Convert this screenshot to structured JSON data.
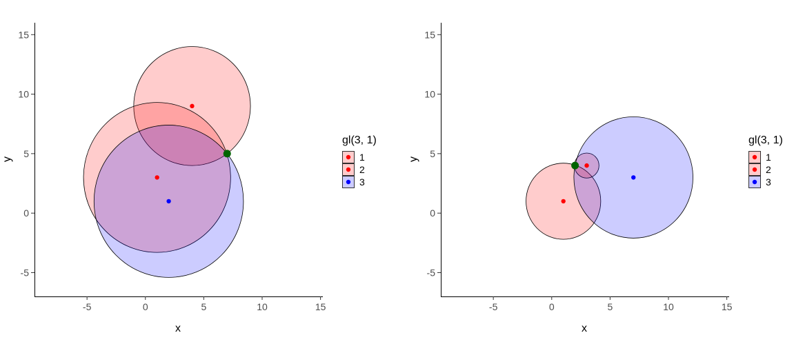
{
  "chart_data": [
    {
      "type": "scatter",
      "title": "",
      "xlabel": "x",
      "ylabel": "y",
      "xlim": [
        -9.5,
        15.2
      ],
      "ylim": [
        -7,
        16
      ],
      "xticks": [
        -5,
        0,
        5,
        10,
        15
      ],
      "yticks": [
        -5,
        0,
        5,
        10,
        15
      ],
      "xtick_labels": [
        "-5",
        "0",
        "5",
        "10",
        "15"
      ],
      "ytick_labels": [
        "-5",
        "0",
        "5",
        "10",
        "15"
      ],
      "grid": false,
      "legend": {
        "title": "gl(3, 1)",
        "placement": "right",
        "entries": [
          {
            "label": "1",
            "point_color": "#ff0000",
            "fill": "#ffcccc"
          },
          {
            "label": "2",
            "point_color": "#ff0000",
            "fill": "#ffcccc"
          },
          {
            "label": "3",
            "point_color": "#0000ff",
            "fill": "#ccccff"
          }
        ]
      },
      "circles": [
        {
          "group": "1",
          "cx": 4,
          "cy": 9,
          "r": 5
        },
        {
          "group": "2",
          "cx": 1,
          "cy": 3,
          "r": 6.3
        },
        {
          "group": "3",
          "cx": 2,
          "cy": 1,
          "r": 6.4
        }
      ],
      "points": [
        {
          "group": "1",
          "x": 4,
          "y": 9,
          "color": "#ff0000"
        },
        {
          "group": "2",
          "x": 1,
          "y": 3,
          "color": "#ff0000"
        },
        {
          "group": "3",
          "x": 2,
          "y": 1,
          "color": "#0000ff"
        }
      ],
      "highlight_point": {
        "x": 7,
        "y": 5,
        "color": "#006400"
      }
    },
    {
      "type": "scatter",
      "title": "",
      "xlabel": "x",
      "ylabel": "y",
      "xlim": [
        -9.5,
        15.2
      ],
      "ylim": [
        -7,
        16
      ],
      "xticks": [
        -5,
        0,
        5,
        10,
        15
      ],
      "yticks": [
        -5,
        0,
        5,
        10,
        15
      ],
      "xtick_labels": [
        "-5",
        "0",
        "5",
        "10",
        "15"
      ],
      "ytick_labels": [
        "-5",
        "0",
        "5",
        "10",
        "15"
      ],
      "grid": false,
      "legend": {
        "title": "gl(3, 1)",
        "placement": "right",
        "entries": [
          {
            "label": "1",
            "point_color": "#ff0000",
            "fill": "#ffcccc"
          },
          {
            "label": "2",
            "point_color": "#ff0000",
            "fill": "#ffcccc"
          },
          {
            "label": "3",
            "point_color": "#0000ff",
            "fill": "#ccccff"
          }
        ]
      },
      "circles": [
        {
          "group": "1",
          "cx": 1,
          "cy": 1,
          "r": 3.2
        },
        {
          "group": "2",
          "cx": 3,
          "cy": 4,
          "r": 1.05
        },
        {
          "group": "3",
          "cx": 7,
          "cy": 3,
          "r": 5.1
        }
      ],
      "points": [
        {
          "group": "1",
          "x": 1,
          "y": 1,
          "color": "#ff0000"
        },
        {
          "group": "2",
          "x": 3,
          "y": 4,
          "color": "#ff0000"
        },
        {
          "group": "3",
          "x": 7,
          "y": 3,
          "color": "#0000ff"
        }
      ],
      "highlight_point": {
        "x": 2,
        "y": 4,
        "color": "#006400"
      }
    }
  ]
}
